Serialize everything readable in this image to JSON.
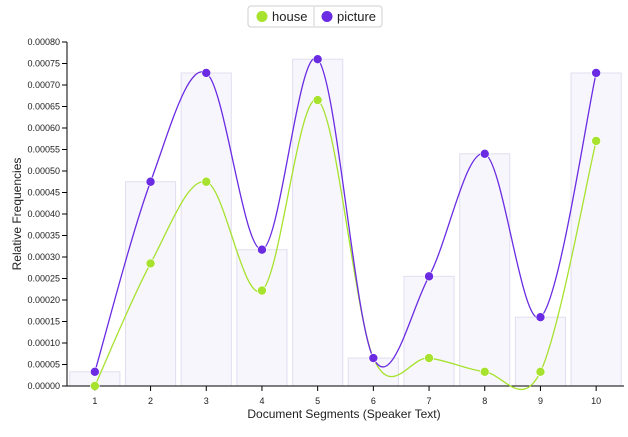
{
  "chart_data": {
    "type": "line",
    "xlabel": "Document Segments (Speaker Text)",
    "ylabel": "Relative Frequencies",
    "categories": [
      "1",
      "2",
      "3",
      "4",
      "5",
      "6",
      "7",
      "8",
      "9",
      "10"
    ],
    "ylim": [
      0,
      0.0008
    ],
    "yticks": [
      "0.00000",
      "0.00005",
      "0.00010",
      "0.00015",
      "0.00020",
      "0.00025",
      "0.00030",
      "0.00035",
      "0.00040",
      "0.00045",
      "0.00050",
      "0.00055",
      "0.00060",
      "0.00065",
      "0.00070",
      "0.00075",
      "0.00080"
    ],
    "legend_position": "top-center",
    "grid": false,
    "series": [
      {
        "name": "house",
        "color": "#a6e22e",
        "values": [
          0.0,
          0.000285,
          0.000475,
          0.000222,
          0.000665,
          6.5e-05,
          6.5e-05,
          3.3e-05,
          3.3e-05,
          0.00057
        ]
      },
      {
        "name": "picture",
        "color": "#6a2be2",
        "values": [
          3.3e-05,
          0.000475,
          0.000728,
          0.000317,
          0.00076,
          6.5e-05,
          0.000255,
          0.00054,
          0.00016,
          0.000728
        ]
      }
    ],
    "bars": [
      3.3e-05,
      0.000475,
      0.000728,
      0.000317,
      0.00076,
      6.5e-05,
      0.000255,
      0.00054,
      0.00016,
      0.000728
    ]
  }
}
